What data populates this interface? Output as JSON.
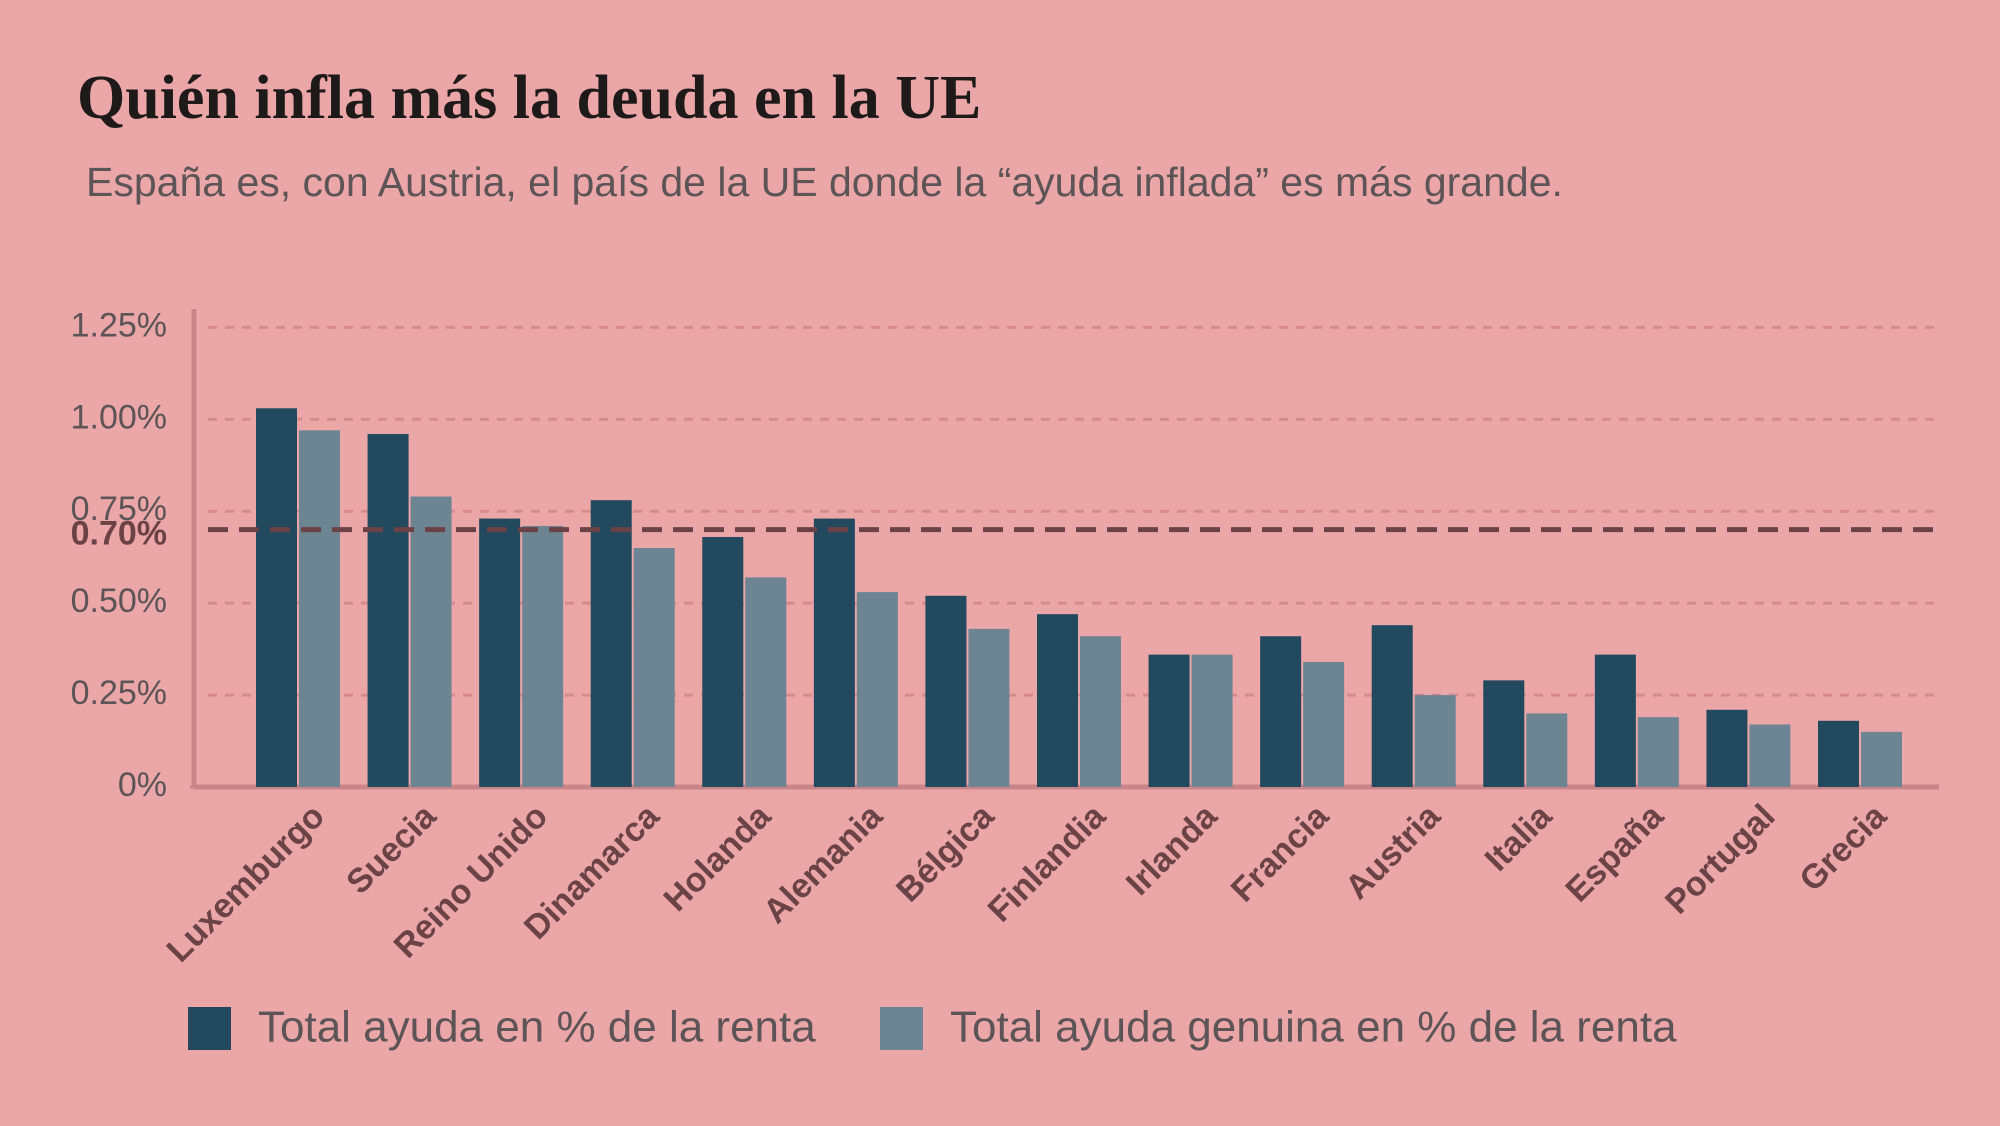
{
  "chart_data": {
    "type": "bar",
    "title": "Quién infla más la deuda en la UE",
    "subtitle": "España es, con Austria, el país de la UE donde la “ayuda inflada” es más grande.",
    "categories": [
      "Luxemburgo",
      "Suecia",
      "Reino Unido",
      "Dinamarca",
      "Holanda",
      "Alemania",
      "Bélgica",
      "Finlandia",
      "Irlanda",
      "Francia",
      "Austria",
      "Italia",
      "España",
      "Portugal",
      "Grecia"
    ],
    "series": [
      {
        "name": "Total ayuda en % de la renta",
        "color": "#22495e",
        "values": [
          1.03,
          0.96,
          0.73,
          0.78,
          0.68,
          0.73,
          0.52,
          0.47,
          0.36,
          0.41,
          0.44,
          0.29,
          0.36,
          0.21,
          0.18
        ]
      },
      {
        "name": "Total ayuda genuina en % de la renta",
        "color": "#6d8593",
        "values": [
          0.97,
          0.79,
          0.71,
          0.65,
          0.57,
          0.53,
          0.43,
          0.41,
          0.36,
          0.34,
          0.25,
          0.2,
          0.19,
          0.17,
          0.15
        ]
      }
    ],
    "ylim": [
      0,
      1.3
    ],
    "yticks": [
      {
        "value": 0,
        "label": "0%"
      },
      {
        "value": 0.25,
        "label": "0.25%"
      },
      {
        "value": 0.5,
        "label": "0.50%"
      },
      {
        "value": 0.75,
        "label": "0.75%"
      },
      {
        "value": 1,
        "label": "1.00%"
      },
      {
        "value": 1.25,
        "label": "1.25%"
      }
    ],
    "reference_line": {
      "value": 0.7,
      "label": "0.70%"
    },
    "grid": true
  }
}
